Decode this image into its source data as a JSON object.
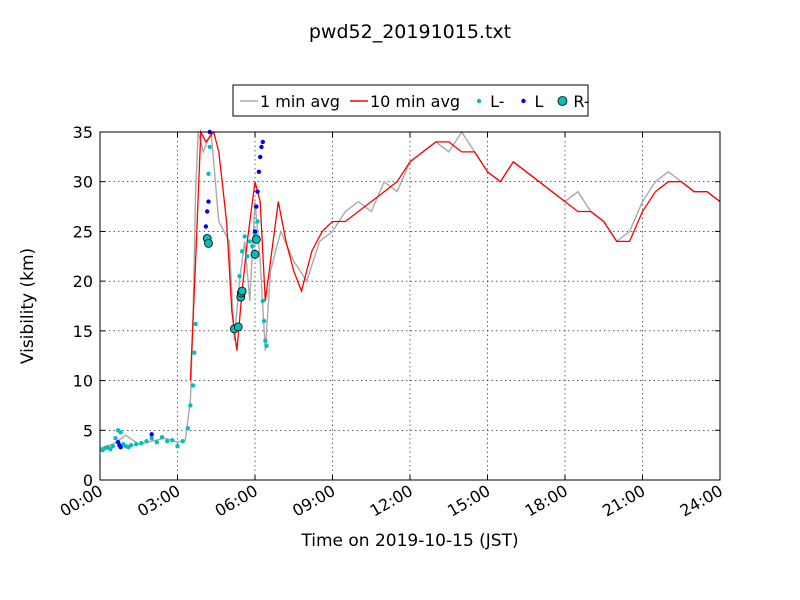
{
  "chart_data": {
    "type": "line",
    "title": "pwd52_20191015.txt",
    "xlabel": "Time on 2019-10-15 (JST)",
    "ylabel": "Visibility (km)",
    "xlim": [
      "00:00",
      "24:00"
    ],
    "ylim": [
      0,
      35
    ],
    "x_ticks": [
      "00:00",
      "03:00",
      "06:00",
      "09:00",
      "12:00",
      "15:00",
      "18:00",
      "21:00",
      "24:00"
    ],
    "y_ticks": [
      0,
      5,
      10,
      15,
      20,
      25,
      30,
      35
    ],
    "grid": true,
    "legend_position": "top-center, above plot",
    "series": [
      {
        "name": "1 min avg",
        "kind": "line",
        "color": "#aaaaaa",
        "x_hours": [
          0.0,
          0.5,
          1.0,
          1.5,
          2.0,
          2.5,
          3.0,
          3.3,
          3.5,
          3.6,
          3.7,
          3.8,
          4.0,
          4.3,
          4.6,
          5.0,
          5.2,
          5.4,
          5.6,
          5.8,
          6.0,
          6.2,
          6.4,
          6.6,
          7.0,
          7.5,
          8.0,
          8.5,
          9.0,
          9.5,
          10.0,
          10.5,
          11.0,
          11.5,
          12.0,
          12.5,
          13.0,
          13.5,
          14.0,
          14.5,
          15.0,
          15.5,
          16.0,
          16.5,
          17.0,
          17.5,
          18.0,
          18.5,
          19.0,
          19.5,
          20.0,
          20.5,
          21.0,
          21.5,
          22.0,
          22.5,
          23.0,
          23.5,
          24.0
        ],
        "y": [
          3.2,
          3.6,
          4.5,
          3.6,
          3.9,
          4.2,
          3.8,
          4.0,
          8.0,
          16.0,
          29.0,
          35.0,
          33.0,
          35.0,
          26.0,
          24.0,
          14.0,
          20.0,
          24.0,
          18.0,
          28.0,
          22.0,
          13.0,
          21.0,
          25.0,
          22.0,
          20.0,
          24.0,
          25.0,
          27.0,
          28.0,
          27.0,
          30.0,
          29.0,
          32.0,
          33.0,
          34.0,
          33.0,
          35.0,
          33.0,
          31.0,
          30.0,
          32.0,
          31.0,
          30.0,
          29.0,
          28.0,
          29.0,
          27.0,
          26.0,
          24.0,
          25.0,
          28.0,
          30.0,
          31.0,
          30.0,
          29.0,
          29.0,
          28.0
        ]
      },
      {
        "name": "10 min avg",
        "kind": "line",
        "color": "#ff0000",
        "x_hours": [
          3.5,
          3.7,
          3.9,
          4.1,
          4.4,
          4.6,
          4.9,
          5.1,
          5.3,
          5.5,
          5.7,
          6.0,
          6.2,
          6.4,
          6.6,
          6.9,
          7.2,
          7.5,
          7.8,
          8.2,
          8.6,
          9.0,
          9.5,
          10.0,
          10.5,
          11.0,
          11.5,
          12.0,
          12.5,
          13.0,
          13.5,
          14.0,
          14.5,
          15.0,
          15.5,
          16.0,
          16.5,
          17.0,
          17.5,
          18.0,
          18.5,
          19.0,
          19.5,
          20.0,
          20.5,
          21.0,
          21.5,
          22.0,
          22.5,
          23.0,
          23.5,
          24.0
        ],
        "y": [
          10.0,
          22.0,
          35.0,
          34.0,
          35.0,
          33.0,
          26.0,
          17.0,
          13.0,
          19.0,
          24.0,
          30.0,
          28.0,
          18.0,
          22.0,
          28.0,
          24.0,
          21.0,
          19.0,
          23.0,
          25.0,
          26.0,
          26.0,
          27.0,
          28.0,
          29.0,
          30.0,
          32.0,
          33.0,
          34.0,
          34.0,
          33.0,
          33.0,
          31.0,
          30.0,
          32.0,
          31.0,
          30.0,
          29.0,
          28.0,
          27.0,
          27.0,
          26.0,
          24.0,
          24.0,
          27.0,
          29.0,
          30.0,
          30.0,
          29.0,
          29.0,
          28.0
        ]
      },
      {
        "name": "L-",
        "kind": "points",
        "color": "#00bfbf",
        "x_hours": [
          0.1,
          0.2,
          0.3,
          0.4,
          0.5,
          0.6,
          0.7,
          0.8,
          0.9,
          1.0,
          1.1,
          1.2,
          1.4,
          1.6,
          1.8,
          2.0,
          2.2,
          2.4,
          2.6,
          2.8,
          3.0,
          3.2,
          3.4,
          3.5,
          3.6,
          3.65,
          3.7,
          4.1,
          4.2,
          4.25,
          5.2,
          5.4,
          5.5,
          5.6,
          5.7,
          5.8,
          5.9,
          6.0,
          6.1,
          6.3,
          6.35,
          6.4,
          6.45
        ],
        "y": [
          3.0,
          3.2,
          3.3,
          3.1,
          3.4,
          4.2,
          5.0,
          4.8,
          3.6,
          3.4,
          3.3,
          3.5,
          3.6,
          3.7,
          3.9,
          4.2,
          3.8,
          4.3,
          3.9,
          4.0,
          3.4,
          3.9,
          5.2,
          7.5,
          9.5,
          12.8,
          15.7,
          24.5,
          30.8,
          33.5,
          15.0,
          20.5,
          23.0,
          24.5,
          22.5,
          24.0,
          23.5,
          24.8,
          26.0,
          18.0,
          16.0,
          14.0,
          13.5
        ]
      },
      {
        "name": "L",
        "kind": "points",
        "color": "#0000ff",
        "x_hours": [
          0.7,
          0.75,
          0.8,
          2.0,
          4.1,
          4.15,
          4.2,
          4.25,
          6.0,
          6.05,
          6.1,
          6.15,
          6.2,
          6.25,
          6.3
        ],
        "y": [
          3.8,
          3.5,
          3.3,
          4.6,
          25.5,
          27.0,
          28.0,
          35.0,
          25.0,
          27.5,
          29.0,
          31.0,
          32.5,
          33.5,
          34.0
        ]
      },
      {
        "name": "R-",
        "kind": "markers",
        "color": "#00bfbf",
        "x_hours": [
          4.15,
          4.2,
          5.2,
          5.35,
          5.45,
          5.47,
          5.5,
          6.0,
          6.05
        ],
        "y": [
          24.3,
          23.8,
          15.2,
          15.4,
          18.4,
          18.8,
          19.0,
          22.7,
          24.2
        ]
      }
    ]
  }
}
